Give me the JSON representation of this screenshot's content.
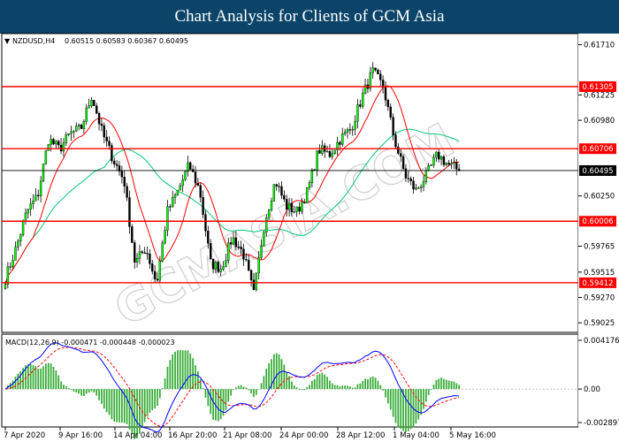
{
  "header": {
    "title": "Chart Analysis for Clients of GCM Asia"
  },
  "watermark": "GCMASIA.COM",
  "chart_data": [
    {
      "type": "candlestick",
      "symbol_label": "NZDUSD,H4",
      "ohlc_label": "0.60515 0.60583 0.60367 0.60495",
      "ylim": [
        0.5895,
        0.618
      ],
      "yticks": [
        "0.61710",
        "0.61225",
        "0.60980",
        "0.60495",
        "0.60250",
        "0.59765",
        "0.59515",
        "0.59270",
        "0.59025"
      ],
      "xticks": [
        "7 Apr 2020",
        "9 Apr 16:00",
        "14 Apr 04:00",
        "16 Apr 20:00",
        "21 Apr 08:00",
        "24 Apr 00:00",
        "28 Apr 12:00",
        "1 May 04:00",
        "5 May 16:00"
      ],
      "current_price": {
        "label": "0.60495",
        "value": 0.60495,
        "color": "#000000"
      },
      "horizontal_levels": [
        {
          "label": "0.61305",
          "value": 0.61305,
          "color": "#ff0000"
        },
        {
          "label": "0.60706",
          "value": 0.60706,
          "color": "#ff0000"
        },
        {
          "label": "0.60006",
          "value": 0.60006,
          "color": "#ff0000"
        },
        {
          "label": "0.59412",
          "value": 0.59412,
          "color": "#ff0000"
        }
      ],
      "anchors": [
        0.5945,
        0.5975,
        0.601,
        0.6025,
        0.608,
        0.607,
        0.6085,
        0.609,
        0.6122,
        0.6085,
        0.606,
        0.604,
        0.596,
        0.5975,
        0.594,
        0.601,
        0.603,
        0.6055,
        0.603,
        0.596,
        0.5955,
        0.5985,
        0.597,
        0.593,
        0.6,
        0.604,
        0.6015,
        0.601,
        0.603,
        0.607,
        0.6065,
        0.608,
        0.609,
        0.612,
        0.6145,
        0.613,
        0.608,
        0.6045,
        0.603,
        0.6045,
        0.6065,
        0.6055,
        0.605
      ],
      "candle_count": 180,
      "series": [
        {
          "name": "MA fast",
          "color": "#ff0000"
        },
        {
          "name": "MA slow",
          "color": "#00c878"
        }
      ],
      "colors": {
        "bull": "#00ff00",
        "bear": "#000000",
        "up_fill": "#00ff00",
        "down_fill": "#000000"
      }
    },
    {
      "type": "macd",
      "label": "MACD(12,26,9) -0.000471 -0.000448 -0.000023",
      "ylim": [
        -0.0029,
        0.0043
      ],
      "yticks": [
        "0.004176",
        "0.00",
        "-0.002897"
      ],
      "series": [
        {
          "name": "MACD",
          "color": "#0000ff"
        },
        {
          "name": "Signal",
          "color": "#ff0000"
        },
        {
          "name": "Histogram",
          "color": "#33aa33"
        }
      ]
    }
  ]
}
